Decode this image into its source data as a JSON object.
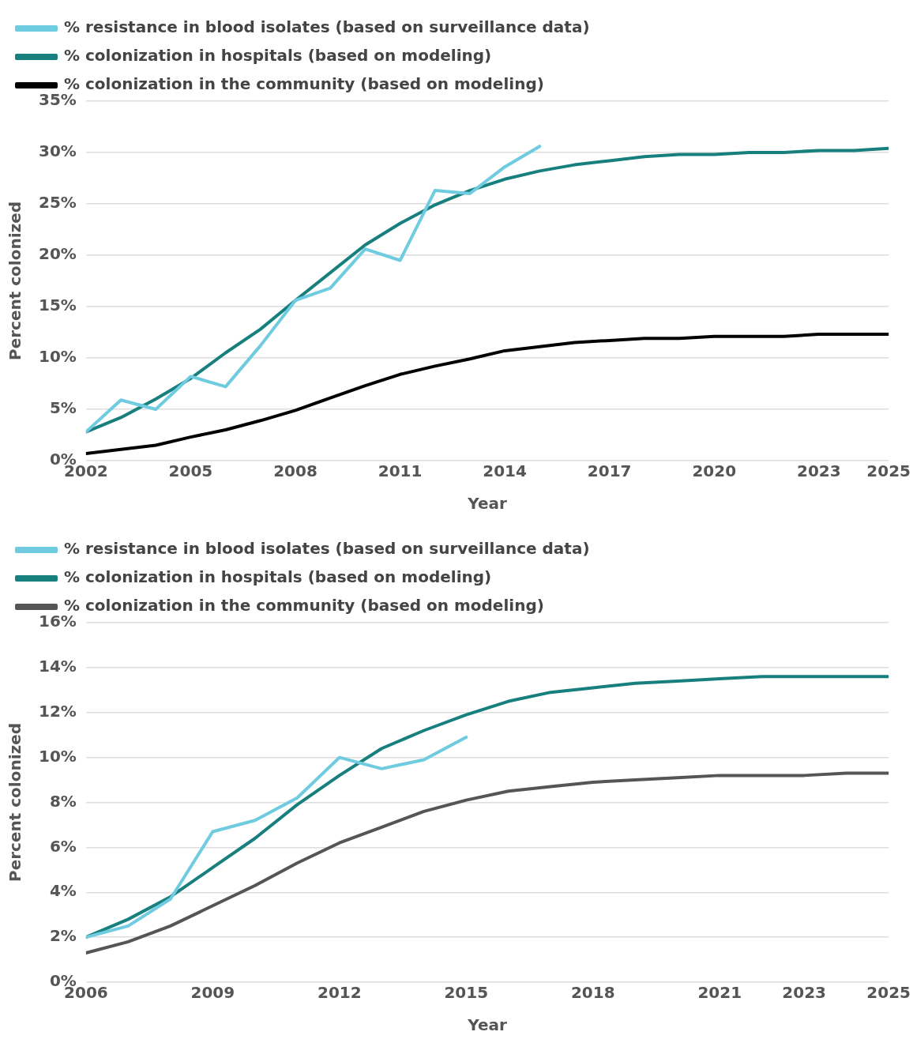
{
  "chart_data": [
    {
      "type": "line",
      "xlabel": "Year",
      "ylabel": "Percent colonized",
      "legend": "top left",
      "grid": "y",
      "line_style": "solid",
      "x": [
        2002,
        2003,
        2004,
        2005,
        2006,
        2007,
        2008,
        2009,
        2010,
        2011,
        2012,
        2013,
        2014,
        2015,
        2016,
        2017,
        2018,
        2019,
        2020,
        2021,
        2022,
        2023,
        2024,
        2025
      ],
      "xlim": [
        2002,
        2025
      ],
      "xticks": [
        2002,
        2005,
        2008,
        2011,
        2014,
        2017,
        2020,
        2023,
        2025
      ],
      "ylim": [
        0,
        35
      ],
      "yticks": [
        {
          "value": 0,
          "label": "0%"
        },
        {
          "value": 5,
          "label": "5%"
        },
        {
          "value": 10,
          "label": "10%"
        },
        {
          "value": 15,
          "label": "15%"
        },
        {
          "value": 20,
          "label": "20%"
        },
        {
          "value": 25,
          "label": "25%"
        },
        {
          "value": 30,
          "label": "30%"
        },
        {
          "value": 35,
          "label": "35%"
        }
      ],
      "series": [
        {
          "name": "% resistance in blood isolates (based on surveillance data)",
          "color": "#6ecbe0",
          "values": [
            2.8,
            5.9,
            5.0,
            8.2,
            7.2,
            11.2,
            15.6,
            16.8,
            20.6,
            19.5,
            26.3,
            26.0,
            28.6,
            30.6,
            null,
            null,
            null,
            null,
            null,
            null,
            null,
            null,
            null,
            null
          ]
        },
        {
          "name": "% colonization in hospitals (based on modeling)",
          "color": "#17807e",
          "values": [
            2.8,
            4.2,
            6.0,
            8.0,
            10.5,
            12.8,
            15.6,
            18.3,
            21.0,
            23.1,
            24.9,
            26.3,
            27.4,
            28.2,
            28.8,
            29.2,
            29.6,
            29.8,
            29.8,
            30.0,
            30.0,
            30.2,
            30.2,
            30.4
          ]
        },
        {
          "name": "% colonization in the community (based on modeling)",
          "color": "#000000",
          "values": [
            0.7,
            1.1,
            1.5,
            2.3,
            3.0,
            3.9,
            4.9,
            6.1,
            7.3,
            8.4,
            9.2,
            9.9,
            10.7,
            11.1,
            11.5,
            11.7,
            11.9,
            11.9,
            12.1,
            12.1,
            12.1,
            12.3,
            12.3,
            12.3
          ]
        }
      ]
    },
    {
      "type": "line",
      "xlabel": "Year",
      "ylabel": "Percent colonized",
      "legend": "top left",
      "grid": "y",
      "line_style": "solid",
      "x": [
        2006,
        2007,
        2008,
        2009,
        2010,
        2011,
        2012,
        2013,
        2014,
        2015,
        2016,
        2017,
        2018,
        2019,
        2020,
        2021,
        2022,
        2023,
        2024,
        2025
      ],
      "xlim": [
        2006,
        2025
      ],
      "xticks": [
        2006,
        2009,
        2012,
        2015,
        2018,
        2021,
        2023,
        2025
      ],
      "ylim": [
        0,
        16
      ],
      "yticks": [
        {
          "value": 0,
          "label": "0%"
        },
        {
          "value": 2,
          "label": "2%"
        },
        {
          "value": 4,
          "label": "4%"
        },
        {
          "value": 6,
          "label": "6%"
        },
        {
          "value": 8,
          "label": "8%"
        },
        {
          "value": 10,
          "label": "10%"
        },
        {
          "value": 12,
          "label": "12%"
        },
        {
          "value": 14,
          "label": "14%"
        },
        {
          "value": 16,
          "label": "16%"
        }
      ],
      "series": [
        {
          "name": "% resistance in blood isolates (based on surveillance data)",
          "color": "#6ecbe0",
          "values": [
            2.0,
            2.5,
            3.7,
            6.7,
            7.2,
            8.2,
            10.0,
            9.5,
            9.9,
            10.9,
            null,
            null,
            null,
            null,
            null,
            null,
            null,
            null,
            null,
            null
          ]
        },
        {
          "name": "% colonization in hospitals (based on modeling)",
          "color": "#17807e",
          "values": [
            2.0,
            2.8,
            3.8,
            5.1,
            6.4,
            7.9,
            9.2,
            10.4,
            11.2,
            11.9,
            12.5,
            12.9,
            13.1,
            13.3,
            13.4,
            13.5,
            13.6,
            13.6,
            13.6,
            13.6
          ]
        },
        {
          "name": "% colonization in the community (based on modeling)",
          "color": "#555555",
          "values": [
            1.3,
            1.8,
            2.5,
            3.4,
            4.3,
            5.3,
            6.2,
            6.9,
            7.6,
            8.1,
            8.5,
            8.7,
            8.9,
            9.0,
            9.1,
            9.2,
            9.2,
            9.2,
            9.3,
            9.3
          ]
        }
      ]
    }
  ]
}
